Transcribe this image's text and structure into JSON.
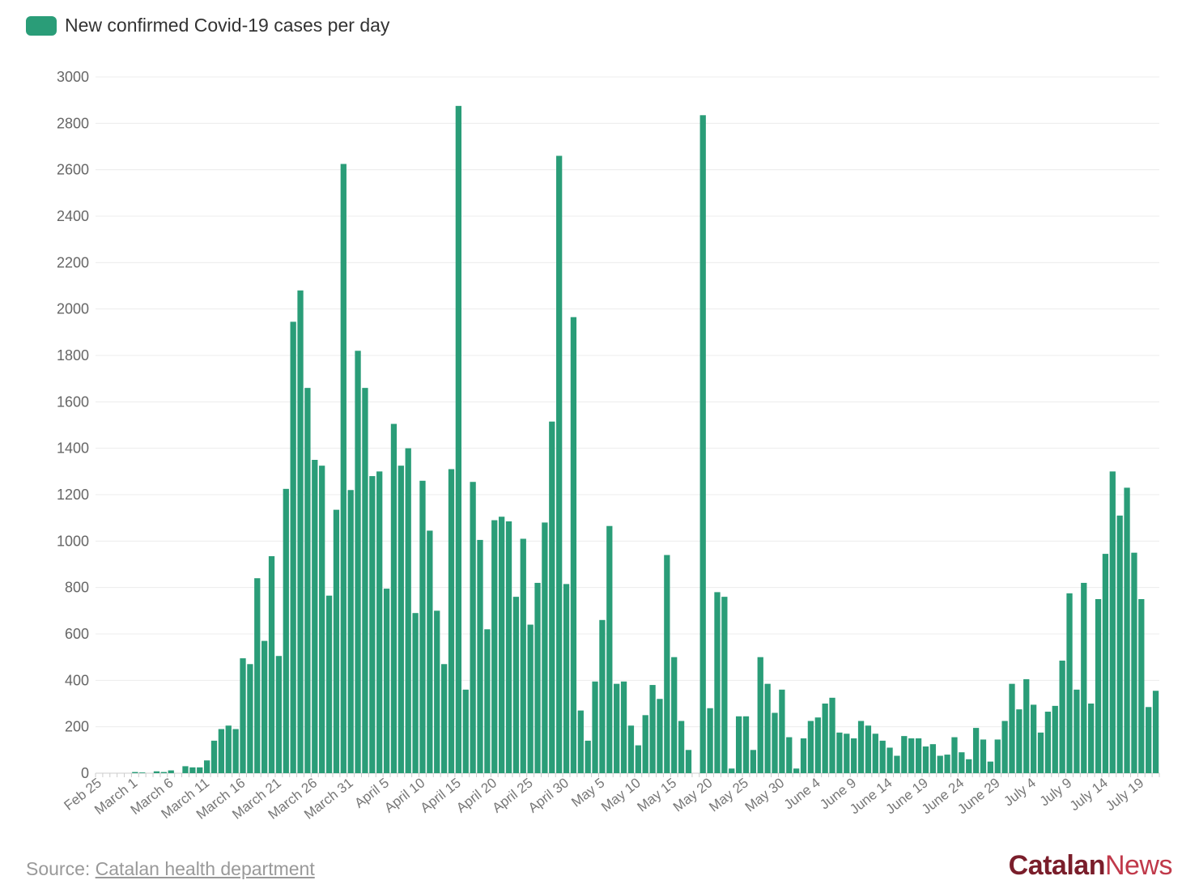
{
  "legend": {
    "label": "New confirmed Covid-19 cases per day",
    "color": "#2a9d78"
  },
  "source": {
    "prefix": "Source: ",
    "link_text": "Catalan health department"
  },
  "brand": {
    "part1": "Catalan",
    "part2": "News",
    "color1": "#7a1e2b",
    "color2": "#c0394a"
  },
  "chart_data": {
    "type": "bar",
    "title": "",
    "xlabel": "",
    "ylabel": "",
    "ylim": [
      0,
      3000
    ],
    "yticks": [
      0,
      200,
      400,
      600,
      800,
      1000,
      1200,
      1400,
      1600,
      1800,
      2000,
      2200,
      2400,
      2600,
      2800,
      3000
    ],
    "grid": true,
    "bar_color": "#2a9d78",
    "x_start_date": "Feb 25",
    "x_tick_labels": [
      "Feb 25",
      "March 1",
      "March 6",
      "March 11",
      "March 16",
      "March 21",
      "March 26",
      "March 31",
      "April 5",
      "April 10",
      "April 15",
      "April 20",
      "April 25",
      "April 30",
      "May 5",
      "May 10",
      "May 15",
      "May 20",
      "May 25",
      "May 30",
      "June 4",
      "June 9",
      "June 14",
      "June 19",
      "June 24",
      "June 29",
      "July 4",
      "July 9",
      "July 14",
      "July 19"
    ],
    "series": [
      {
        "values": [
          0,
          0,
          0,
          0,
          0,
          5,
          3,
          0,
          8,
          5,
          12,
          0,
          30,
          25,
          25,
          55,
          140,
          190,
          205,
          190,
          495,
          470,
          840,
          570,
          935,
          505,
          1225,
          1945,
          2080,
          1660,
          1350,
          1325,
          765,
          1135,
          2625,
          1220,
          1820,
          1660,
          1280,
          1300,
          795,
          1505,
          1325,
          1400,
          690,
          1260,
          1045,
          700,
          470,
          1310,
          2875,
          360,
          1255,
          1005,
          620,
          1090,
          1105,
          1085,
          760,
          1010,
          640,
          820,
          1080,
          1515,
          2660,
          815,
          1965,
          270,
          140,
          395,
          660,
          1065,
          385,
          395,
          205,
          120,
          250,
          380,
          320,
          940,
          500,
          225,
          100,
          0,
          2835,
          280,
          780,
          760,
          20,
          245,
          245,
          100,
          500,
          385,
          260,
          360,
          155,
          20,
          150,
          225,
          240,
          300,
          325,
          175,
          170,
          150,
          225,
          205,
          170,
          140,
          110,
          75,
          160,
          150,
          150,
          115,
          125,
          75,
          80,
          155,
          90,
          60,
          195,
          145,
          50,
          145,
          225,
          385,
          275,
          405,
          295,
          175,
          265,
          290,
          485,
          775,
          360,
          820,
          300,
          750,
          945,
          1300,
          1110,
          1230,
          950,
          750,
          285,
          355
        ]
      }
    ]
  }
}
